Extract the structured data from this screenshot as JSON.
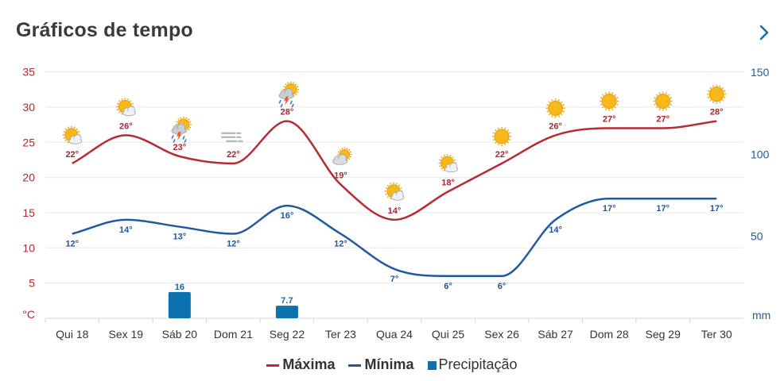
{
  "header": {
    "title": "Gráficos de tempo",
    "next_icon": "chevron-right-icon"
  },
  "legend": {
    "max": {
      "label": "Máxima",
      "color": "#b72c31"
    },
    "min": {
      "label": "Mínima",
      "color": "#1f5aa0"
    },
    "precip": {
      "label": "Precipitação",
      "color": "#0b72ae"
    }
  },
  "chart_data": {
    "type": "line",
    "categories": [
      "Qui 18",
      "Sex 19",
      "Sáb 20",
      "Dom 21",
      "Seg 22",
      "Ter 23",
      "Qua 24",
      "Qui 25",
      "Sex 26",
      "Sáb 27",
      "Dom 28",
      "Seg 29",
      "Ter 30"
    ],
    "left_axis": {
      "unit": "°C",
      "ticks": [
        35,
        30,
        25,
        20,
        15,
        10,
        5
      ],
      "range": [
        0,
        35
      ]
    },
    "right_axis": {
      "unit": "mm",
      "ticks": [
        150,
        100,
        50
      ],
      "range": [
        0,
        150
      ]
    },
    "series": [
      {
        "name": "Máxima",
        "axis": "left",
        "color": "#b72c31",
        "values": [
          22,
          26,
          23,
          22,
          28,
          19,
          14,
          18,
          22,
          26,
          27,
          27,
          28
        ],
        "labels": [
          "22°",
          "26°",
          "23°",
          "22°",
          "28°",
          "19°",
          "14°",
          "18°",
          "22°",
          "26°",
          "27°",
          "27°",
          "28°"
        ]
      },
      {
        "name": "Mínima",
        "axis": "left",
        "color": "#1f5aa0",
        "values": [
          12,
          14,
          13,
          12,
          16,
          12,
          7,
          6,
          6,
          14,
          17,
          17,
          17
        ],
        "labels": [
          "12°",
          "14°",
          "13°",
          "12°",
          "16°",
          "12°",
          "7°",
          "6°",
          "6°",
          "14°",
          "17°",
          "17°",
          "17°"
        ]
      },
      {
        "name": "Precipitação",
        "axis": "right",
        "type": "bar",
        "color": "#0b72ae",
        "values": [
          0,
          0,
          16,
          0,
          7.7,
          0,
          0,
          0,
          0,
          0,
          0,
          0,
          0
        ],
        "labels": [
          "",
          "",
          "16",
          "",
          "7.7",
          "",
          "",
          "",
          "",
          "",
          "",
          "",
          ""
        ]
      }
    ],
    "weather_icons": [
      "partly-cloudy-icon",
      "partly-cloudy-icon",
      "thunderstorm-icon",
      "fog-icon",
      "thunderstorm-icon",
      "cloudy-icon",
      "partly-cloudy-icon",
      "partly-cloudy-icon",
      "sun-icon",
      "sun-icon",
      "sun-icon",
      "sun-icon",
      "sun-icon"
    ],
    "grid": true
  }
}
